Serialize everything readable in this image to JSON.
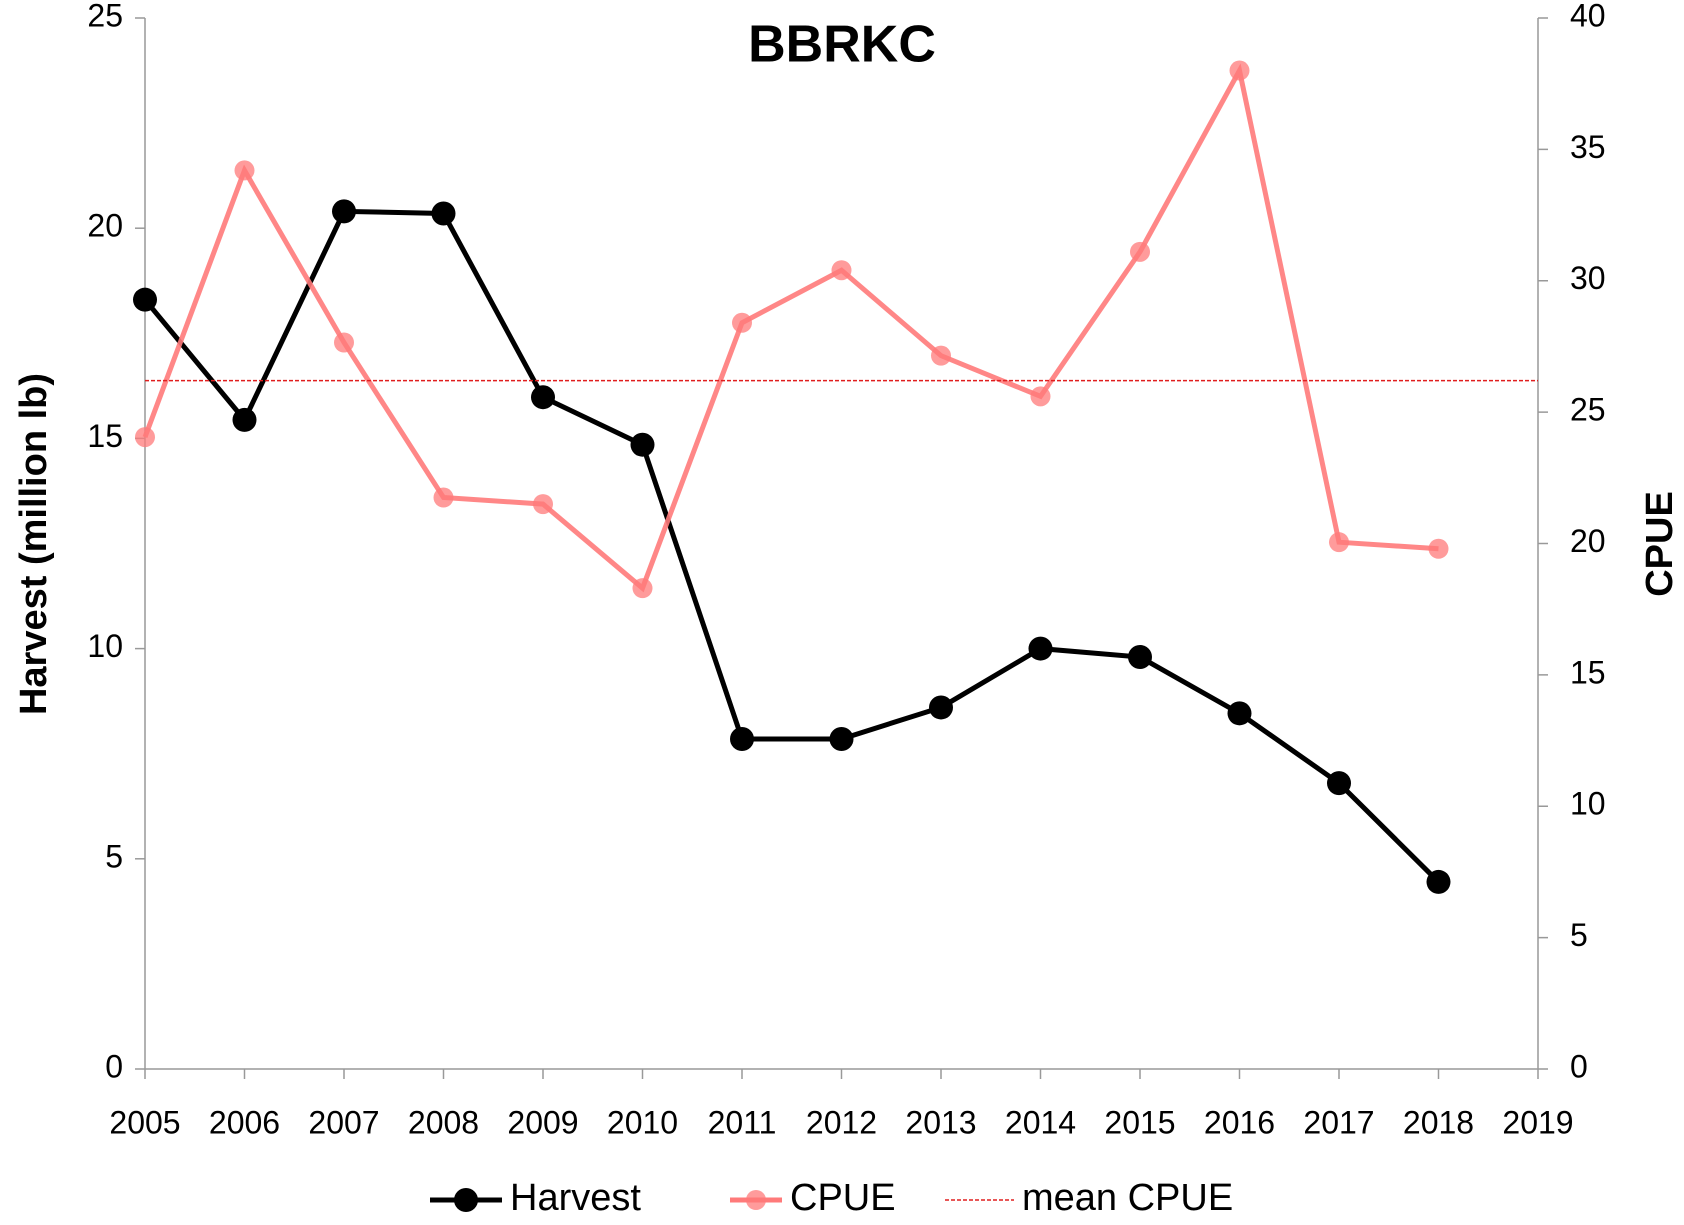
{
  "chart_data": {
    "type": "line",
    "title": "BBRKC",
    "x": [
      2005,
      2006,
      2007,
      2008,
      2009,
      2010,
      2011,
      2012,
      2013,
      2014,
      2015,
      2016,
      2017,
      2018
    ],
    "xlim": [
      2005,
      2019
    ],
    "xticks": [
      2005,
      2006,
      2007,
      2008,
      2009,
      2010,
      2011,
      2012,
      2013,
      2014,
      2015,
      2016,
      2017,
      2018,
      2019
    ],
    "y_label": "Harvest (million lb)",
    "y2_label": "CPUE",
    "ylim": [
      0,
      25
    ],
    "yticks": [
      0,
      5,
      10,
      15,
      20,
      25
    ],
    "y2lim": [
      0,
      40
    ],
    "y2ticks": [
      0,
      5,
      10,
      15,
      20,
      25,
      30,
      35,
      40
    ],
    "series": [
      {
        "name": "Harvest",
        "color": "#000000",
        "axis": "y",
        "marker": true,
        "values": [
          18.3,
          15.44,
          20.4,
          20.35,
          15.98,
          14.85,
          7.85,
          7.85,
          8.6,
          10.0,
          9.8,
          8.46,
          6.8,
          4.45
        ]
      },
      {
        "name": "CPUE",
        "color": "#ff7a7a",
        "axis": "y2",
        "marker": true,
        "values": [
          24.05,
          34.2,
          27.65,
          21.75,
          21.5,
          18.3,
          28.4,
          30.4,
          27.15,
          25.6,
          31.1,
          38.0,
          20.05,
          19.8
        ]
      },
      {
        "name": "mean CPUE",
        "color": "#e01e1e",
        "axis": "y2",
        "dashed": true,
        "x": [
          2005,
          2019
        ],
        "values": [
          26.2,
          26.2
        ]
      }
    ]
  }
}
